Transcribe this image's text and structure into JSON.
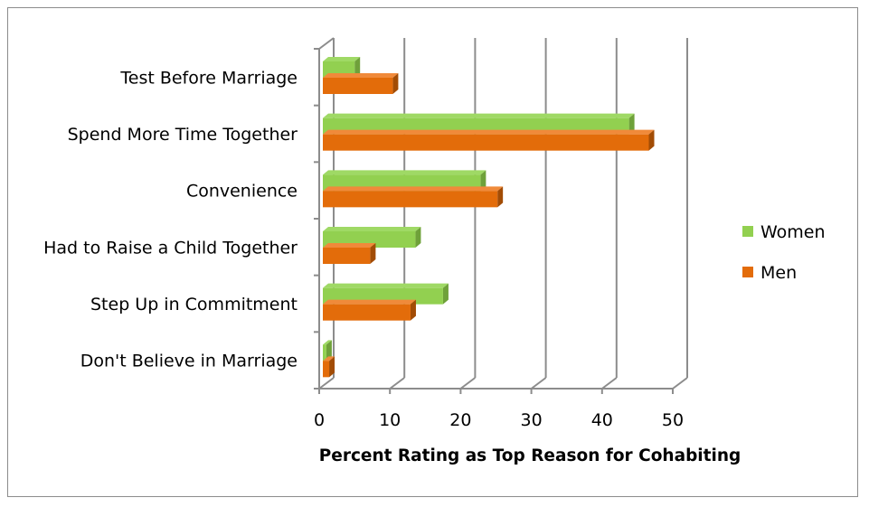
{
  "chart_data": {
    "type": "bar",
    "orientation": "horizontal",
    "style": "3d-clustered",
    "title": "",
    "xlabel": "Percent Rating as Top Reason for Cohabiting",
    "ylabel": "",
    "xlim": [
      0,
      50
    ],
    "xticks": [
      0,
      10,
      20,
      30,
      40,
      50
    ],
    "grid": true,
    "legend_position": "right",
    "categories": [
      "Test Before Marriage",
      "Spend More Time Together",
      "Convenience",
      "Had to Raise a Child Together",
      "Step Up in Commitment",
      "Don't Believe in Marriage"
    ],
    "series": [
      {
        "name": "Women",
        "color": "#92d050",
        "values": [
          4.5,
          43.3,
          22.3,
          13.1,
          17.0,
          0.5
        ]
      },
      {
        "name": "Men",
        "color": "#e36c0a",
        "values": [
          9.9,
          46.1,
          24.7,
          6.7,
          12.4,
          0.9
        ]
      }
    ]
  }
}
